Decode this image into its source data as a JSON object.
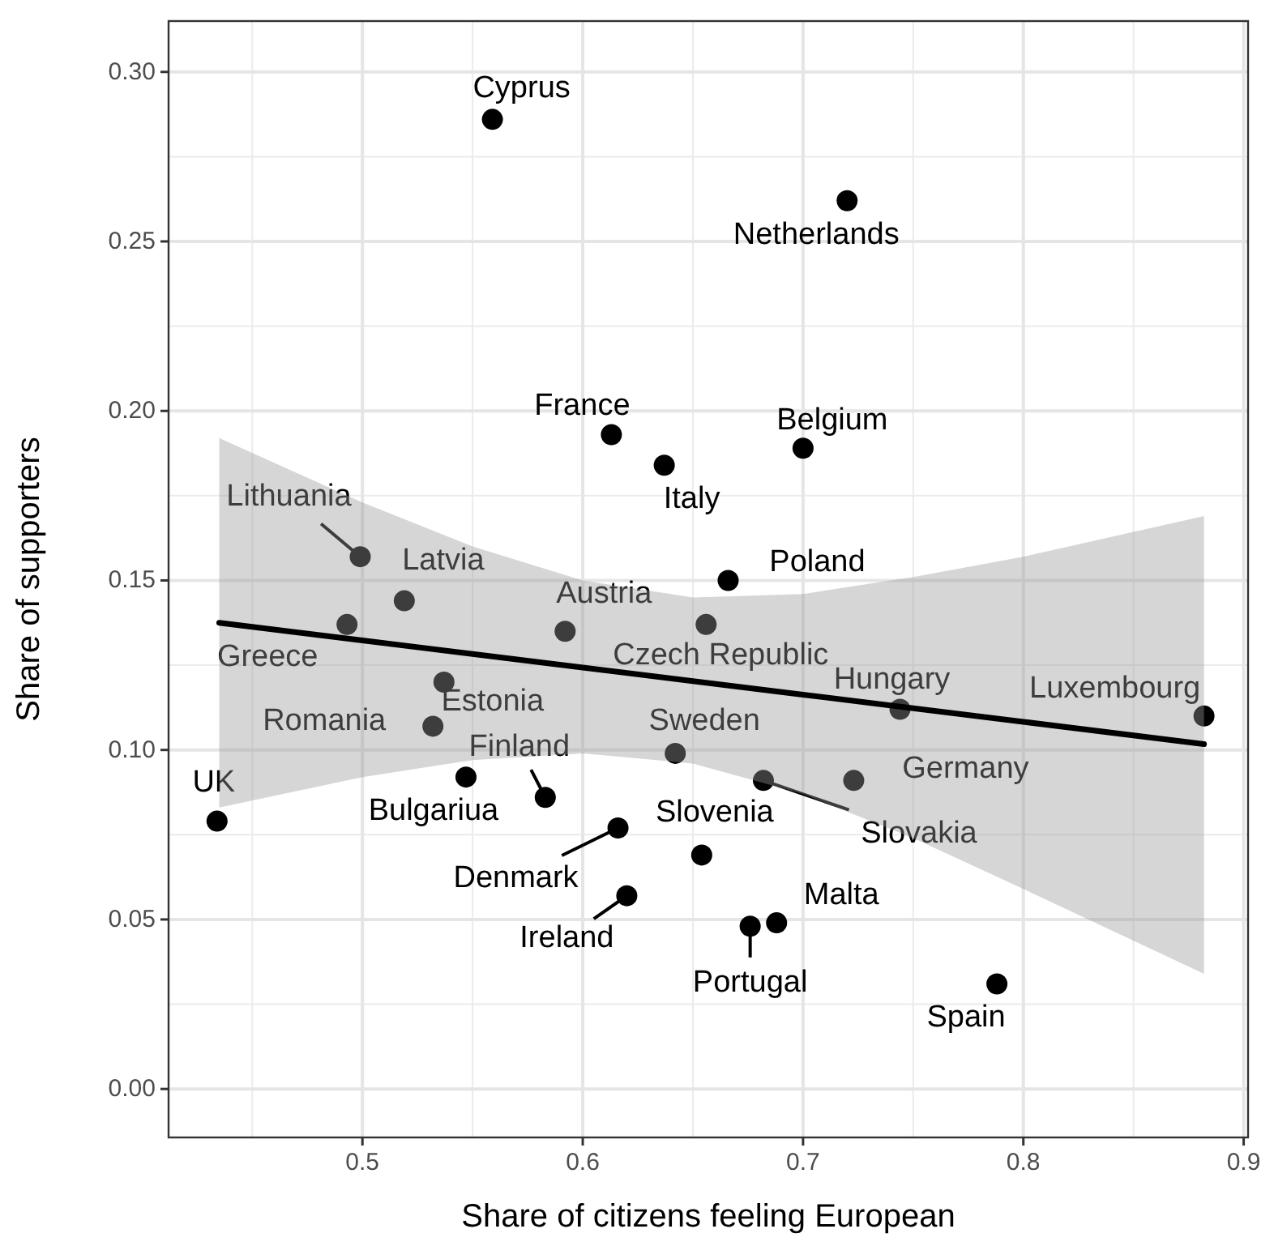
{
  "chart_data": {
    "type": "scatter",
    "xlabel": "Share of citizens feeling European",
    "ylabel": "Share of supporters",
    "xlim": [
      0.412,
      0.902
    ],
    "ylim": [
      -0.0143,
      0.315
    ],
    "xticks": [
      {
        "value": 0.5,
        "label": "0.5"
      },
      {
        "value": 0.6,
        "label": "0.6"
      },
      {
        "value": 0.7,
        "label": "0.7"
      },
      {
        "value": 0.8,
        "label": "0.8"
      },
      {
        "value": 0.9,
        "label": "0.9"
      }
    ],
    "yticks": [
      {
        "value": 0,
        "label": "0.00"
      },
      {
        "value": 0.05,
        "label": "0.05"
      },
      {
        "value": 0.1,
        "label": "0.10"
      },
      {
        "value": 0.15,
        "label": "0.15"
      },
      {
        "value": 0.2,
        "label": "0.20"
      },
      {
        "value": 0.25,
        "label": "0.25"
      },
      {
        "value": 0.3,
        "label": "0.30"
      }
    ],
    "grid": true,
    "marker": "circle",
    "series": [
      {
        "color": "#000000",
        "x": [
          0.559,
          0.72,
          0.613,
          0.637,
          0.7,
          0.499,
          0.519,
          0.666,
          0.592,
          0.493,
          0.537,
          0.656,
          0.532,
          0.583,
          0.547,
          0.434,
          0.642,
          0.744,
          0.882,
          0.723,
          0.682,
          0.654,
          0.616,
          0.62,
          0.688,
          0.676,
          0.788
        ],
        "values": [
          0.286,
          0.262,
          0.193,
          0.184,
          0.189,
          0.157,
          0.144,
          0.15,
          0.135,
          0.137,
          0.12,
          0.137,
          0.107,
          0.086,
          0.092,
          0.079,
          0.099,
          0.112,
          0.11,
          0.091,
          0.091,
          0.069,
          0.077,
          0.057,
          0.049,
          0.048,
          0.031
        ]
      },
      {
        "type": "line",
        "marker": "none",
        "color": "#000000",
        "x": [
          0.435,
          0.5,
          0.55,
          0.6,
          0.65,
          0.7,
          0.75,
          0.8,
          0.882
        ],
        "values": [
          0.1375,
          0.1323,
          0.1283,
          0.1243,
          0.1203,
          0.1163,
          0.1123,
          0.1083,
          0.1017
        ],
        "lower": [
          0.083,
          0.092,
          0.097,
          0.099,
          0.096,
          0.087,
          0.074,
          0.059,
          0.034
        ],
        "upper": [
          0.192,
          0.173,
          0.16,
          0.15,
          0.145,
          0.146,
          0.151,
          0.157,
          0.169
        ]
      }
    ],
    "annotations": [
      {
        "text": "Cyprus",
        "x": 0.559,
        "y": 0.286
      },
      {
        "text": "Netherlands",
        "x": 0.72,
        "y": 0.262
      },
      {
        "text": "France",
        "x": 0.613,
        "y": 0.193
      },
      {
        "text": "Italy",
        "x": 0.637,
        "y": 0.184
      },
      {
        "text": "Belgium",
        "x": 0.7,
        "y": 0.189
      },
      {
        "text": "Lithuania",
        "x": 0.499,
        "y": 0.157
      },
      {
        "text": "Latvia",
        "x": 0.519,
        "y": 0.144
      },
      {
        "text": "Poland",
        "x": 0.666,
        "y": 0.15
      },
      {
        "text": "Austria",
        "x": 0.592,
        "y": 0.135
      },
      {
        "text": "Greece",
        "x": 0.493,
        "y": 0.137
      },
      {
        "text": "Estonia",
        "x": 0.537,
        "y": 0.12
      },
      {
        "text": "Czech Republic",
        "x": 0.656,
        "y": 0.137
      },
      {
        "text": "Romania",
        "x": 0.532,
        "y": 0.107
      },
      {
        "text": "Finland",
        "x": 0.583,
        "y": 0.086
      },
      {
        "text": "Bulgariua",
        "x": 0.547,
        "y": 0.092
      },
      {
        "text": "UK",
        "x": 0.434,
        "y": 0.079
      },
      {
        "text": "Sweden",
        "x": 0.642,
        "y": 0.099
      },
      {
        "text": "Hungary",
        "x": 0.744,
        "y": 0.112
      },
      {
        "text": "Luxembourg",
        "x": 0.882,
        "y": 0.11
      },
      {
        "text": "Germany",
        "x": 0.723,
        "y": 0.091
      },
      {
        "text": "Slovakia",
        "x": 0.682,
        "y": 0.091
      },
      {
        "text": "Slovenia",
        "x": 0.654,
        "y": 0.069
      },
      {
        "text": "Denmark",
        "x": 0.616,
        "y": 0.077
      },
      {
        "text": "Ireland",
        "x": 0.62,
        "y": 0.057
      },
      {
        "text": "Malta",
        "x": 0.688,
        "y": 0.049
      },
      {
        "text": "Portugal",
        "x": 0.676,
        "y": 0.048
      },
      {
        "text": "Spain",
        "x": 0.788,
        "y": 0.031
      }
    ]
  }
}
